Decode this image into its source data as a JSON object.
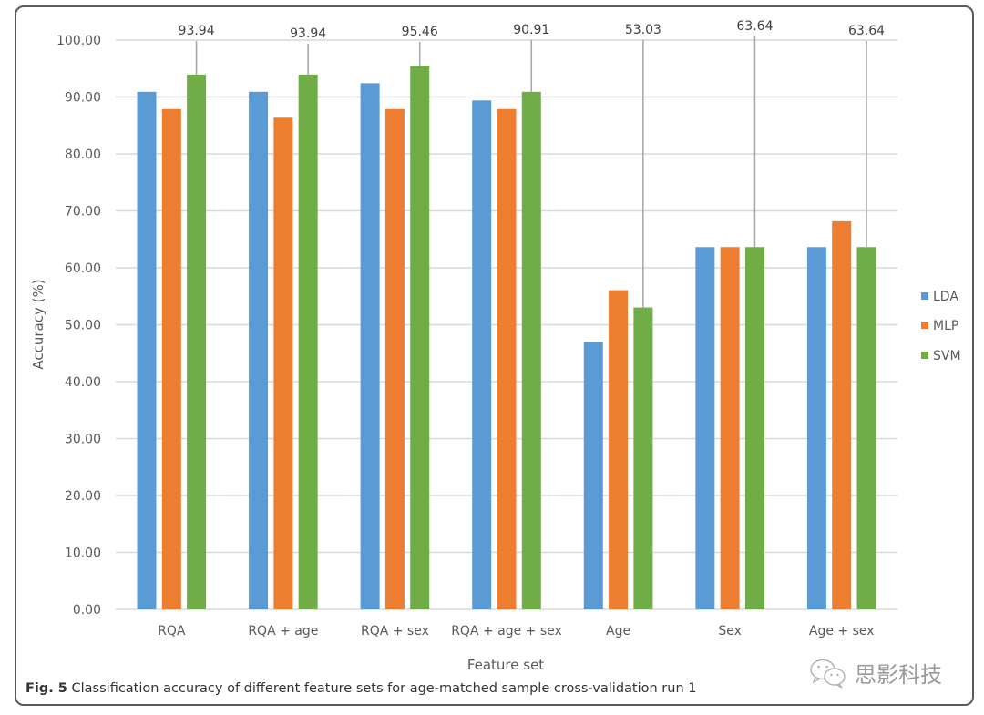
{
  "chart_data": {
    "type": "bar",
    "title": "",
    "xlabel": "Feature set",
    "ylabel": "Accuracy (%)",
    "ylim": [
      0,
      100
    ],
    "yticks": [
      "0.00",
      "10.00",
      "20.00",
      "30.00",
      "40.00",
      "50.00",
      "60.00",
      "70.00",
      "80.00",
      "90.00",
      "100.00"
    ],
    "ytick_values": [
      0,
      10,
      20,
      30,
      40,
      50,
      60,
      70,
      80,
      90,
      100
    ],
    "grid": true,
    "legend_position": "right",
    "categories": [
      "RQA",
      "RQA + age",
      "RQA + sex",
      "RQA + age + sex",
      "Age",
      "Sex",
      "Age + sex"
    ],
    "series": [
      {
        "name": "LDA",
        "color": "#5b9bd5",
        "values": [
          90.91,
          90.91,
          92.42,
          89.39,
          46.97,
          63.64,
          63.64
        ]
      },
      {
        "name": "MLP",
        "color": "#ed7d31",
        "values": [
          87.88,
          86.36,
          87.88,
          87.88,
          56.06,
          63.64,
          68.18
        ]
      },
      {
        "name": "SVM",
        "color": "#70ad47",
        "values": [
          93.94,
          93.94,
          95.46,
          90.91,
          53.03,
          63.64,
          63.64
        ]
      }
    ],
    "annotations": {
      "series": "SVM",
      "labels": [
        "93.94",
        "93.94",
        "95.46",
        "90.91",
        "53.03",
        "63.64",
        "63.64"
      ]
    }
  },
  "caption": {
    "prefix": "Fig. 5",
    "text": " Classification accuracy of different feature sets for age-matched sample cross-validation run 1"
  },
  "watermark": {
    "icon": "wechat-icon",
    "text": "思影科技"
  }
}
